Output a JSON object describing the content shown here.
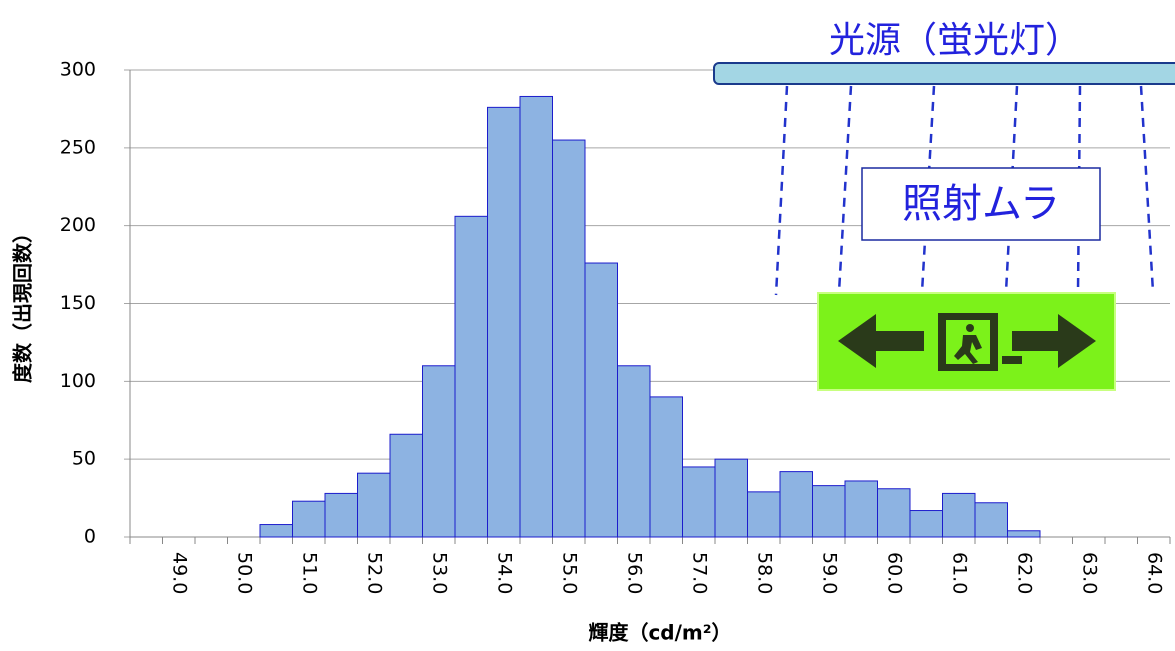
{
  "chart_data": {
    "type": "bar",
    "x_label": "輝度（cd/m²）",
    "y_label": "度数（出現回数）",
    "categories": [
      null,
      "49.0",
      null,
      "50.0",
      null,
      "51.0",
      null,
      "52.0",
      null,
      "53.0",
      null,
      "54.0",
      null,
      "55.0",
      null,
      "56.0",
      null,
      "57.0",
      null,
      "58.0",
      null,
      "59.0",
      null,
      "60.0",
      null,
      "61.0",
      null,
      "62.0",
      null,
      "63.0",
      null,
      "64.0"
    ],
    "values": [
      0,
      0,
      0,
      0,
      8,
      23,
      28,
      41,
      66,
      110,
      206,
      276,
      283,
      255,
      176,
      110,
      90,
      45,
      50,
      29,
      42,
      33,
      36,
      31,
      17,
      28,
      22,
      4,
      0,
      0,
      0,
      0
    ],
    "color": "#8db3e2",
    "ylim": [
      0,
      300
    ],
    "yticks": [
      0,
      50,
      100,
      150,
      200,
      250,
      300
    ],
    "grid": true,
    "annotations": [
      "光源（蛍光灯）",
      "照射ムラ"
    ]
  }
}
